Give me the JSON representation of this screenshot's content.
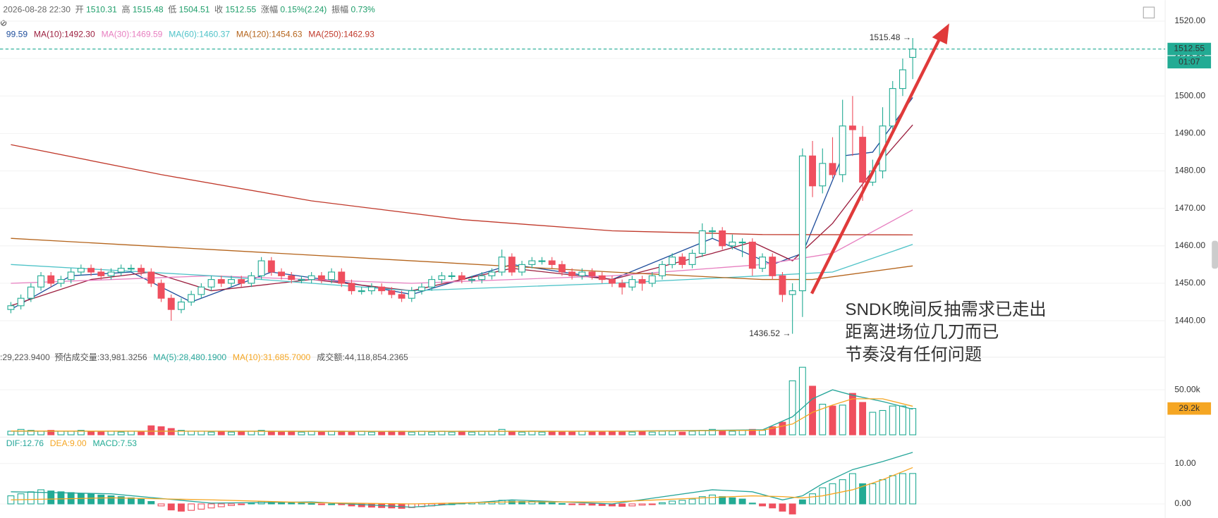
{
  "header": {
    "time": "2026-08-28 22:30",
    "fields": [
      {
        "label": "开",
        "value": "1510.31"
      },
      {
        "label": "高",
        "value": "1515.48"
      },
      {
        "label": "低",
        "value": "1504.51"
      },
      {
        "label": "收",
        "value": "1512.55"
      },
      {
        "label": "涨幅",
        "value": "0.15%(2.24)"
      },
      {
        "label": "振幅",
        "value": "0.73%"
      }
    ]
  },
  "chart_data": [
    {
      "type": "candlestick",
      "ylim": [
        1431.3,
        1525.6
      ],
      "yticks": [
        {
          "value": 1440,
          "label": "1440.00"
        },
        {
          "value": 1450,
          "label": "1450.00"
        },
        {
          "value": 1460,
          "label": "1460.00"
        },
        {
          "value": 1470,
          "label": "1470.00"
        },
        {
          "value": 1480,
          "label": "1480.00"
        },
        {
          "value": 1490,
          "label": "1490.00"
        },
        {
          "value": 1500,
          "label": "1500.00"
        },
        {
          "value": 1510,
          "label": "1510.00"
        },
        {
          "value": 1520,
          "label": "1520.00"
        }
      ],
      "up_color": "#22ab94",
      "down_color": "#ef4f5e",
      "open": [
        1443,
        1444,
        1446,
        1449,
        1452,
        1450,
        1451,
        1453,
        1454,
        1453,
        1452,
        1453,
        1454,
        1454,
        1453,
        1450,
        1446,
        1443,
        1445,
        1447,
        1449,
        1451,
        1450,
        1451,
        1450,
        1452,
        1456,
        1453,
        1452,
        1451,
        1451,
        1452,
        1451,
        1453,
        1450,
        1448,
        1448,
        1449,
        1448,
        1447,
        1446,
        1448,
        1449,
        1451,
        1452,
        1452,
        1451,
        1451,
        1452,
        1453,
        1457,
        1453,
        1455,
        1456,
        1456,
        1455,
        1453,
        1452,
        1453,
        1452,
        1451,
        1450,
        1449,
        1451,
        1450,
        1452,
        1455,
        1457,
        1455,
        1458,
        1464,
        1464,
        1460,
        1461,
        1461,
        1454,
        1457,
        1452,
        1447,
        1448,
        1484,
        1476,
        1482,
        1479,
        1492,
        1489,
        1477,
        1480,
        1492,
        1502,
        1510.31
      ],
      "high": [
        1445,
        1447,
        1450,
        1453,
        1453,
        1452,
        1454,
        1455,
        1455,
        1454,
        1454,
        1455,
        1455,
        1455,
        1454,
        1451,
        1447,
        1446,
        1448,
        1450,
        1452,
        1452,
        1452,
        1452,
        1453,
        1457,
        1457,
        1454,
        1453,
        1452,
        1453,
        1453,
        1454,
        1454,
        1451,
        1449,
        1450,
        1450,
        1449,
        1448,
        1449,
        1450,
        1452,
        1453,
        1453,
        1453,
        1452,
        1453,
        1454,
        1459,
        1458,
        1456,
        1457,
        1457,
        1457,
        1456,
        1454,
        1454,
        1454,
        1453,
        1452,
        1451,
        1452,
        1452,
        1453,
        1456,
        1458,
        1458,
        1459,
        1466,
        1465,
        1465,
        1463,
        1462,
        1462,
        1458,
        1458,
        1453,
        1450,
        1486,
        1488,
        1486,
        1489,
        1499,
        1500,
        1492,
        1483,
        1497,
        1504,
        1510,
        1515.48
      ],
      "low": [
        1442,
        1443,
        1445,
        1448,
        1449,
        1449,
        1450,
        1452,
        1452,
        1451,
        1451,
        1452,
        1453,
        1452,
        1449,
        1445,
        1440,
        1442,
        1444,
        1446,
        1448,
        1449,
        1449,
        1449,
        1449,
        1451,
        1452,
        1451,
        1450,
        1450,
        1450,
        1450,
        1450,
        1449,
        1447,
        1447,
        1447,
        1447,
        1446,
        1445,
        1445,
        1447,
        1448,
        1450,
        1451,
        1450,
        1450,
        1450,
        1451,
        1452,
        1452,
        1452,
        1454,
        1455,
        1454,
        1452,
        1451,
        1451,
        1451,
        1450,
        1449,
        1447,
        1448,
        1448,
        1449,
        1451,
        1454,
        1454,
        1454,
        1457,
        1462,
        1459,
        1459,
        1457,
        1452,
        1453,
        1451,
        1445,
        1436.52,
        1441,
        1473,
        1474,
        1478,
        1477,
        1484,
        1472,
        1476,
        1478,
        1491,
        1500,
        1504.51
      ],
      "close": [
        1444,
        1446,
        1449,
        1452,
        1450,
        1451,
        1453,
        1454,
        1453,
        1452,
        1453,
        1454,
        1454,
        1453,
        1450,
        1446,
        1443,
        1445,
        1447,
        1449,
        1451,
        1450,
        1451,
        1450,
        1452,
        1456,
        1453,
        1452,
        1451,
        1451,
        1452,
        1451,
        1453,
        1450,
        1448,
        1448,
        1449,
        1448,
        1447,
        1446,
        1448,
        1449,
        1451,
        1452,
        1452,
        1451,
        1451,
        1452,
        1453,
        1457,
        1453,
        1455,
        1456,
        1456,
        1455,
        1453,
        1452,
        1453,
        1452,
        1451,
        1450,
        1449,
        1451,
        1450,
        1452,
        1455,
        1457,
        1455,
        1458,
        1464,
        1464,
        1460,
        1461,
        1461,
        1454,
        1457,
        1452,
        1447,
        1448,
        1484,
        1476,
        1482,
        1479,
        1492,
        1491,
        1477,
        1480,
        1492,
        1502,
        1507,
        1512.55
      ],
      "ma_lines": [
        {
          "name": "99.59",
          "color": "#1f4e9c",
          "x": [
            0,
            6,
            12,
            18,
            26,
            34,
            40,
            50,
            60,
            70,
            76,
            79,
            83,
            86,
            90
          ],
          "values": [
            1443,
            1452,
            1453,
            1445,
            1453,
            1450,
            1447,
            1455,
            1451,
            1462,
            1455,
            1458,
            1484,
            1485,
            1499.59
          ]
        },
        {
          "name": "MA(10):1492.30",
          "color": "#9c1f3f",
          "x": [
            0,
            8,
            14,
            20,
            30,
            40,
            50,
            60,
            70,
            74,
            78,
            82,
            86,
            90
          ],
          "values": [
            1444,
            1451,
            1453,
            1448,
            1451,
            1448,
            1454,
            1451,
            1458,
            1461,
            1456,
            1466,
            1480,
            1492.3
          ]
        },
        {
          "name": "MA(30):1469.59",
          "color": "#e77fc0",
          "x": [
            0,
            20,
            40,
            60,
            75,
            82,
            90
          ],
          "values": [
            1450,
            1452,
            1450,
            1452,
            1455,
            1458,
            1469.59
          ]
        },
        {
          "name": "MA(60):1460.37",
          "color": "#4fc3c8",
          "x": [
            0,
            20,
            40,
            60,
            75,
            82,
            90
          ],
          "values": [
            1455,
            1452,
            1448,
            1450,
            1452,
            1453,
            1460.37
          ]
        },
        {
          "name": "MA(120):1454.63",
          "color": "#b5651d",
          "x": [
            0,
            20,
            40,
            60,
            75,
            80,
            90
          ],
          "values": [
            1462,
            1459,
            1456,
            1453,
            1451,
            1451,
            1454.63
          ]
        },
        {
          "name": "MA(250):1462.93",
          "color": "#c0392b",
          "x": [
            0,
            15,
            30,
            45,
            60,
            75,
            90
          ],
          "values": [
            1487,
            1479,
            1472,
            1467,
            1464,
            1463,
            1462.93
          ]
        }
      ],
      "annotations": [
        {
          "x": 90,
          "value": 1515.48,
          "label": "1515.48 →"
        },
        {
          "x": 78,
          "value": 1436.52,
          "label": "1436.52 →"
        }
      ],
      "last_label": "1512.55",
      "countdown": "01:07",
      "note": [
        "SNDK晚间反抽需求已走出",
        "距离进场位几刀而已",
        "节奏没有任何问题"
      ],
      "note_color": "#e03a3a"
    },
    {
      "type": "volume",
      "ylim": [
        0,
        81900
      ],
      "yticks": [
        {
          "value": 50000,
          "label": "50.00k"
        }
      ],
      "values": [
        4000,
        6000,
        5000,
        4000,
        5000,
        4000,
        4000,
        5000,
        4000,
        3000,
        4000,
        3000,
        4000,
        3000,
        10000,
        9000,
        7000,
        5000,
        4000,
        4000,
        3000,
        4000,
        3000,
        4000,
        4000,
        5000,
        4000,
        3000,
        4000,
        3000,
        4000,
        3000,
        4000,
        4000,
        3000,
        4000,
        3000,
        3000,
        4000,
        4000,
        3000,
        4000,
        3000,
        4000,
        3000,
        4000,
        3000,
        4000,
        4000,
        6000,
        4000,
        3000,
        4000,
        3000,
        4000,
        3000,
        3000,
        4000,
        3000,
        3000,
        4000,
        3000,
        3000,
        4000,
        3000,
        4000,
        4000,
        3000,
        4000,
        5000,
        6000,
        5000,
        4000,
        5000,
        6000,
        5000,
        9000,
        14000,
        60000,
        75000,
        54000,
        34000,
        32000,
        33000,
        46000,
        36000,
        25000,
        27000,
        32000,
        32000,
        29223.94
      ],
      "legend_before": [
        ":29,223.9400",
        "预估成交量:33,981.3256"
      ],
      "lines": [
        {
          "name": "MA(5):28,480.1900",
          "color": "#26a69a",
          "x": [
            0,
            20,
            40,
            60,
            75,
            78,
            80,
            82,
            84,
            87,
            90
          ],
          "values": [
            4000,
            4000,
            3800,
            4000,
            5500,
            20000,
            40000,
            50000,
            44000,
            37000,
            28480.19
          ]
        },
        {
          "name": "MA(10):31,685.7000",
          "color": "#f5a623",
          "x": [
            0,
            20,
            40,
            60,
            75,
            78,
            80,
            82,
            84,
            87,
            90
          ],
          "values": [
            4200,
            4000,
            3900,
            4000,
            5000,
            12000,
            25000,
            33000,
            40000,
            40000,
            31685.7
          ]
        }
      ],
      "legend_after": [
        "成交额:44,118,854.2365"
      ],
      "last_label": "29.2k",
      "last_color": "#f5a623"
    },
    {
      "type": "macd",
      "ylim": [
        -3.46,
        16.15
      ],
      "yticks": [
        {
          "value": 0,
          "label": "0.00"
        },
        {
          "value": 10,
          "label": "10.00"
        }
      ],
      "up_color": "#22ab94",
      "down_color": "#ef4f5e",
      "values": [
        2,
        2.5,
        3,
        3.5,
        3.2,
        3,
        2.8,
        2.6,
        2.5,
        2.2,
        2,
        1.8,
        1.5,
        1.2,
        0.6,
        -0.5,
        -1.5,
        -1.8,
        -1.6,
        -1.3,
        -1,
        -0.7,
        -0.4,
        -0.2,
        0.2,
        0.6,
        0.5,
        0.4,
        0.3,
        0.2,
        0.1,
        -0.1,
        0,
        -0.2,
        -0.5,
        -0.7,
        -0.8,
        -0.9,
        -1,
        -1.1,
        -0.9,
        -0.7,
        -0.5,
        -0.2,
        0,
        0.2,
        0.3,
        0.4,
        0.5,
        0.9,
        0.7,
        0.6,
        0.6,
        0.5,
        0.3,
        0.1,
        -0.1,
        -0.2,
        -0.3,
        -0.4,
        -0.5,
        -0.6,
        -0.5,
        -0.3,
        -0.1,
        0.3,
        0.7,
        0.9,
        1.2,
        1.8,
        2.2,
        1.8,
        1.5,
        1.2,
        0.2,
        -0.5,
        -1,
        -1.8,
        -2.5,
        1,
        2.5,
        4,
        5,
        6,
        7.5,
        5,
        5,
        6,
        7,
        7.5,
        7.53
      ],
      "legend_before": [],
      "lines": [
        {
          "name": "DIF:12.76",
          "color": "#26a69a",
          "x": [
            0,
            10,
            20,
            30,
            40,
            50,
            60,
            70,
            74,
            77,
            79,
            81,
            84,
            87,
            90
          ],
          "values": [
            3,
            2.5,
            0.2,
            0.5,
            -0.8,
            1,
            0,
            3.5,
            3,
            1,
            2,
            5,
            8.5,
            10.5,
            12.76
          ]
        },
        {
          "name": "DEA:9.00",
          "color": "#f5a623",
          "x": [
            0,
            10,
            20,
            30,
            40,
            50,
            60,
            70,
            74,
            77,
            79,
            81,
            84,
            87,
            90
          ],
          "values": [
            1,
            1.5,
            1,
            0.3,
            0,
            0.5,
            0.5,
            1.6,
            2,
            1.8,
            1.5,
            2,
            3.5,
            6,
            9
          ]
        }
      ],
      "legend_after": [
        "MACD:7.53"
      ]
    }
  ]
}
